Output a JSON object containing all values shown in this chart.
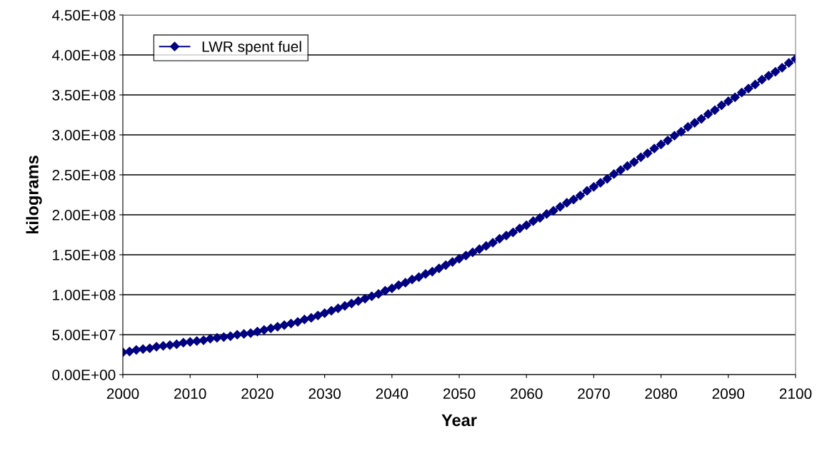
{
  "chart_data": {
    "type": "line",
    "xlabel": "Year",
    "ylabel": "kilograms",
    "x": [
      2000,
      2001,
      2002,
      2003,
      2004,
      2005,
      2006,
      2007,
      2008,
      2009,
      2010,
      2011,
      2012,
      2013,
      2014,
      2015,
      2016,
      2017,
      2018,
      2019,
      2020,
      2021,
      2022,
      2023,
      2024,
      2025,
      2026,
      2027,
      2028,
      2029,
      2030,
      2031,
      2032,
      2033,
      2034,
      2035,
      2036,
      2037,
      2038,
      2039,
      2040,
      2041,
      2042,
      2043,
      2044,
      2045,
      2046,
      2047,
      2048,
      2049,
      2050,
      2051,
      2052,
      2053,
      2054,
      2055,
      2056,
      2057,
      2058,
      2059,
      2060,
      2061,
      2062,
      2063,
      2064,
      2065,
      2066,
      2067,
      2068,
      2069,
      2070,
      2071,
      2072,
      2073,
      2074,
      2075,
      2076,
      2077,
      2078,
      2079,
      2080,
      2081,
      2082,
      2083,
      2084,
      2085,
      2086,
      2087,
      2088,
      2089,
      2090,
      2091,
      2092,
      2093,
      2094,
      2095,
      2096,
      2097,
      2098,
      2099,
      2100
    ],
    "series": [
      {
        "name": "LWR spent fuel",
        "color": "#000080",
        "values": [
          28000000,
          29000000,
          31000000,
          32000000,
          33000000,
          35000000,
          36000000,
          37000000,
          38000000,
          40000000,
          41000000,
          42000000,
          43000000,
          45000000,
          46000000,
          47000000,
          48000000,
          50000000,
          51000000,
          52000000,
          54000000,
          56000000,
          58000000,
          60000000,
          62000000,
          64000000,
          66000000,
          69000000,
          71000000,
          74000000,
          77000000,
          80000000,
          83000000,
          86000000,
          89000000,
          92000000,
          95000000,
          98000000,
          101000000,
          105000000,
          108000000,
          112000000,
          115000000,
          119000000,
          122000000,
          126000000,
          129000000,
          133000000,
          137000000,
          141000000,
          145000000,
          149000000,
          153000000,
          157000000,
          161000000,
          165000000,
          170000000,
          174000000,
          178000000,
          183000000,
          187000000,
          192000000,
          196000000,
          201000000,
          205000000,
          210000000,
          215000000,
          219000000,
          224000000,
          230000000,
          235000000,
          240000000,
          245000000,
          251000000,
          256000000,
          261000000,
          266000000,
          272000000,
          277000000,
          283000000,
          288000000,
          293000000,
          299000000,
          304000000,
          310000000,
          315000000,
          320000000,
          326000000,
          331000000,
          337000000,
          342000000,
          347000000,
          353000000,
          358000000,
          363000000,
          369000000,
          374000000,
          379000000,
          384000000,
          390000000,
          395000000
        ]
      }
    ],
    "xlim": [
      2000,
      2100
    ],
    "xticks": [
      2000,
      2010,
      2020,
      2030,
      2040,
      2050,
      2060,
      2070,
      2080,
      2090,
      2100
    ],
    "ylim": [
      0,
      450000000
    ],
    "yticks": [
      {
        "value": 0,
        "label": "0.00E+00"
      },
      {
        "value": 50000000,
        "label": "5.00E+07"
      },
      {
        "value": 100000000,
        "label": "1.00E+08"
      },
      {
        "value": 150000000,
        "label": "1.50E+08"
      },
      {
        "value": 200000000,
        "label": "2.00E+08"
      },
      {
        "value": 250000000,
        "label": "2.50E+08"
      },
      {
        "value": 300000000,
        "label": "3.00E+08"
      },
      {
        "value": 350000000,
        "label": "3.50E+08"
      },
      {
        "value": 400000000,
        "label": "4.00E+08"
      },
      {
        "value": 450000000,
        "label": "4.50E+08"
      }
    ],
    "grid": "y",
    "legend": "top left",
    "marker": "diamond",
    "line_style": "solid"
  }
}
